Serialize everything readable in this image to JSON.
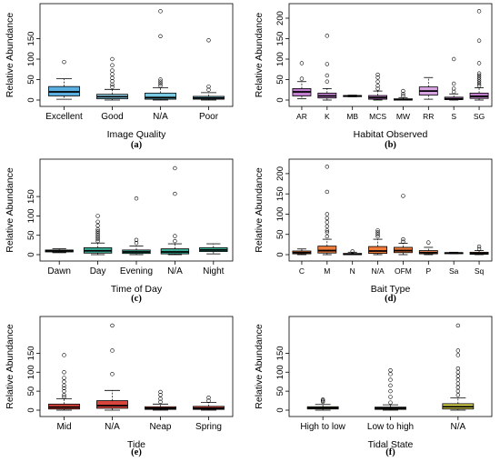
{
  "chart_data": [
    {
      "type": "boxplot",
      "panel_label": "(a)",
      "xlabel": "Image Quality",
      "ylabel": "Relative Abundance",
      "ylim": [
        0,
        220
      ],
      "yticks": [
        0,
        50,
        100,
        150
      ],
      "categories": [
        "Excellent",
        "Good",
        "N/A",
        "Poor"
      ],
      "colors": [
        "#5aaee0",
        "#8ed4ec",
        "#79c9e3",
        "#79c9e3"
      ],
      "boxes": [
        {
          "min": 2,
          "q1": 10,
          "median": 20,
          "q3": 33,
          "max": 52,
          "outliers": [
            93
          ]
        },
        {
          "min": 0,
          "q1": 3,
          "median": 8,
          "q3": 14,
          "max": 26,
          "outliers": [
            32,
            38,
            46,
            54,
            63,
            72,
            85,
            100
          ]
        },
        {
          "min": 0,
          "q1": 2,
          "median": 6,
          "q3": 17,
          "max": 30,
          "outliers": [
            35,
            40,
            45,
            50,
            156,
            217
          ]
        },
        {
          "min": 0,
          "q1": 2,
          "median": 5,
          "q3": 9,
          "max": 18,
          "outliers": [
            25,
            33,
            146
          ]
        }
      ]
    },
    {
      "type": "boxplot",
      "panel_label": "(b)",
      "xlabel": "Habitat Observed",
      "ylabel": "Relative Abundance",
      "ylim": [
        0,
        220
      ],
      "yticks": [
        0,
        50,
        100,
        150,
        200
      ],
      "categories": [
        "AR",
        "K",
        "MB",
        "MCS",
        "MW",
        "RR",
        "S",
        "SG"
      ],
      "colors": [
        "#c37fcf",
        "#c37fcf",
        "#c37fcf",
        "#c37fcf",
        "#c37fcf",
        "#d7a3e0",
        "#c37fcf",
        "#c37fcf"
      ],
      "boxes": [
        {
          "min": 3,
          "q1": 10,
          "median": 20,
          "q3": 28,
          "max": 45,
          "outliers": [
            52,
            90
          ]
        },
        {
          "min": 0,
          "q1": 5,
          "median": 10,
          "q3": 17,
          "max": 28,
          "outliers": [
            45,
            60,
            88,
            157
          ]
        },
        {
          "min": 8,
          "q1": 9,
          "median": 10,
          "q3": 11,
          "max": 12,
          "outliers": []
        },
        {
          "min": 0,
          "q1": 2,
          "median": 6,
          "q3": 11,
          "max": 22,
          "outliers": [
            28,
            35,
            45,
            55,
            62
          ]
        },
        {
          "min": 0,
          "q1": 0,
          "median": 1,
          "q3": 3,
          "max": 6,
          "outliers": [
            10,
            15,
            22
          ]
        },
        {
          "min": 2,
          "q1": 12,
          "median": 22,
          "q3": 32,
          "max": 55,
          "outliers": []
        },
        {
          "min": 0,
          "q1": 1,
          "median": 3,
          "q3": 7,
          "max": 15,
          "outliers": [
            20,
            28,
            40,
            100
          ]
        },
        {
          "min": 0,
          "q1": 4,
          "median": 9,
          "q3": 17,
          "max": 30,
          "outliers": [
            35,
            40,
            45,
            50,
            55,
            60,
            65,
            90,
            145,
            217
          ]
        }
      ]
    },
    {
      "type": "boxplot",
      "panel_label": "(c)",
      "xlabel": "Time of Day",
      "ylabel": "Relative Abundance",
      "ylim": [
        0,
        230
      ],
      "yticks": [
        0,
        50,
        100,
        150
      ],
      "categories": [
        "Dawn",
        "Day",
        "Evening",
        "N/A",
        "Night"
      ],
      "colors": [
        "#2f9d8a",
        "#3aae97",
        "#3aae97",
        "#3aae97",
        "#3aae97"
      ],
      "boxes": [
        {
          "min": 5,
          "q1": 7,
          "median": 10,
          "q3": 12,
          "max": 15,
          "outliers": []
        },
        {
          "min": 0,
          "q1": 4,
          "median": 10,
          "q3": 18,
          "max": 30,
          "outliers": [
            35,
            40,
            45,
            50,
            55,
            60,
            65,
            75,
            85,
            100
          ]
        },
        {
          "min": 0,
          "q1": 3,
          "median": 7,
          "q3": 12,
          "max": 22,
          "outliers": [
            30,
            38,
            145
          ]
        },
        {
          "min": 0,
          "q1": 2,
          "median": 7,
          "q3": 15,
          "max": 28,
          "outliers": [
            35,
            48,
            157,
            223
          ]
        },
        {
          "min": 2,
          "q1": 8,
          "median": 12,
          "q3": 18,
          "max": 28,
          "outliers": []
        }
      ]
    },
    {
      "type": "boxplot",
      "panel_label": "(d)",
      "xlabel": "Bait Type",
      "ylabel": "Relative Abundance",
      "ylim": [
        0,
        220
      ],
      "yticks": [
        0,
        50,
        100,
        150,
        200
      ],
      "categories": [
        "C",
        "M",
        "N",
        "N/A",
        "OFM",
        "P",
        "Sa",
        "Sq"
      ],
      "colors": [
        "#f07c3c",
        "#f07c3c",
        "#f07c3c",
        "#f07c3c",
        "#f07c3c",
        "#f28c55",
        "#f07c3c",
        "#f07c3c"
      ],
      "boxes": [
        {
          "min": 0,
          "q1": 2,
          "median": 5,
          "q3": 9,
          "max": 14,
          "outliers": []
        },
        {
          "min": 0,
          "q1": 4,
          "median": 10,
          "q3": 21,
          "max": 38,
          "outliers": [
            45,
            55,
            60,
            70,
            80,
            90,
            100,
            155,
            217
          ]
        },
        {
          "min": 0,
          "q1": 0,
          "median": 1,
          "q3": 3,
          "max": 6,
          "outliers": [
            8
          ]
        },
        {
          "min": 0,
          "q1": 3,
          "median": 9,
          "q3": 20,
          "max": 38,
          "outliers": [
            45,
            50,
            55,
            60
          ]
        },
        {
          "min": 0,
          "q1": 5,
          "median": 10,
          "q3": 18,
          "max": 28,
          "outliers": [
            32,
            38,
            145
          ]
        },
        {
          "min": 0,
          "q1": 2,
          "median": 5,
          "q3": 10,
          "max": 18,
          "outliers": [
            30
          ]
        },
        {
          "min": 2,
          "q1": 3,
          "median": 4,
          "q3": 5,
          "max": 6,
          "outliers": []
        },
        {
          "min": 0,
          "q1": 1,
          "median": 3,
          "q3": 6,
          "max": 10,
          "outliers": [
            14,
            20
          ]
        }
      ]
    },
    {
      "type": "boxplot",
      "panel_label": "(e)",
      "xlabel": "Tide",
      "ylabel": "Relative Abundance",
      "ylim": [
        0,
        230
      ],
      "yticks": [
        0,
        50,
        100,
        150
      ],
      "categories": [
        "Mid",
        "N/A",
        "Neap",
        "Spring"
      ],
      "colors": [
        "#d9453c",
        "#d9453c",
        "#d9453c",
        "#d9453c"
      ],
      "boxes": [
        {
          "min": 0,
          "q1": 3,
          "median": 8,
          "q3": 16,
          "max": 30,
          "outliers": [
            35,
            40,
            50,
            58,
            65,
            75,
            85,
            100,
            145
          ]
        },
        {
          "min": 0,
          "q1": 5,
          "median": 12,
          "q3": 25,
          "max": 52,
          "outliers": [
            95,
            157,
            223
          ]
        },
        {
          "min": 0,
          "q1": 2,
          "median": 5,
          "q3": 9,
          "max": 16,
          "outliers": [
            22,
            30,
            40,
            48
          ]
        },
        {
          "min": 0,
          "q1": 2,
          "median": 5,
          "q3": 10,
          "max": 20,
          "outliers": [
            25,
            33
          ]
        }
      ]
    },
    {
      "type": "boxplot",
      "panel_label": "(f)",
      "xlabel": "Tidal State",
      "ylabel": "Relative Abundance",
      "ylim": [
        0,
        230
      ],
      "yticks": [
        0,
        50,
        100,
        150
      ],
      "categories": [
        "High to low",
        "Low to high",
        "N/A"
      ],
      "colors": [
        "#d4cf4a",
        "#d4cf4a",
        "#d4cf4a"
      ],
      "boxes": [
        {
          "min": 0,
          "q1": 3,
          "median": 6,
          "q3": 9,
          "max": 15,
          "outliers": [
            22,
            25,
            28
          ]
        },
        {
          "min": 0,
          "q1": 2,
          "median": 5,
          "q3": 8,
          "max": 14,
          "outliers": [
            20,
            35,
            50,
            65,
            80,
            95,
            105
          ]
        },
        {
          "min": 0,
          "q1": 3,
          "median": 9,
          "q3": 17,
          "max": 32,
          "outliers": [
            40,
            50,
            60,
            70,
            80,
            90,
            100,
            110,
            145,
            157,
            223
          ]
        }
      ]
    }
  ]
}
